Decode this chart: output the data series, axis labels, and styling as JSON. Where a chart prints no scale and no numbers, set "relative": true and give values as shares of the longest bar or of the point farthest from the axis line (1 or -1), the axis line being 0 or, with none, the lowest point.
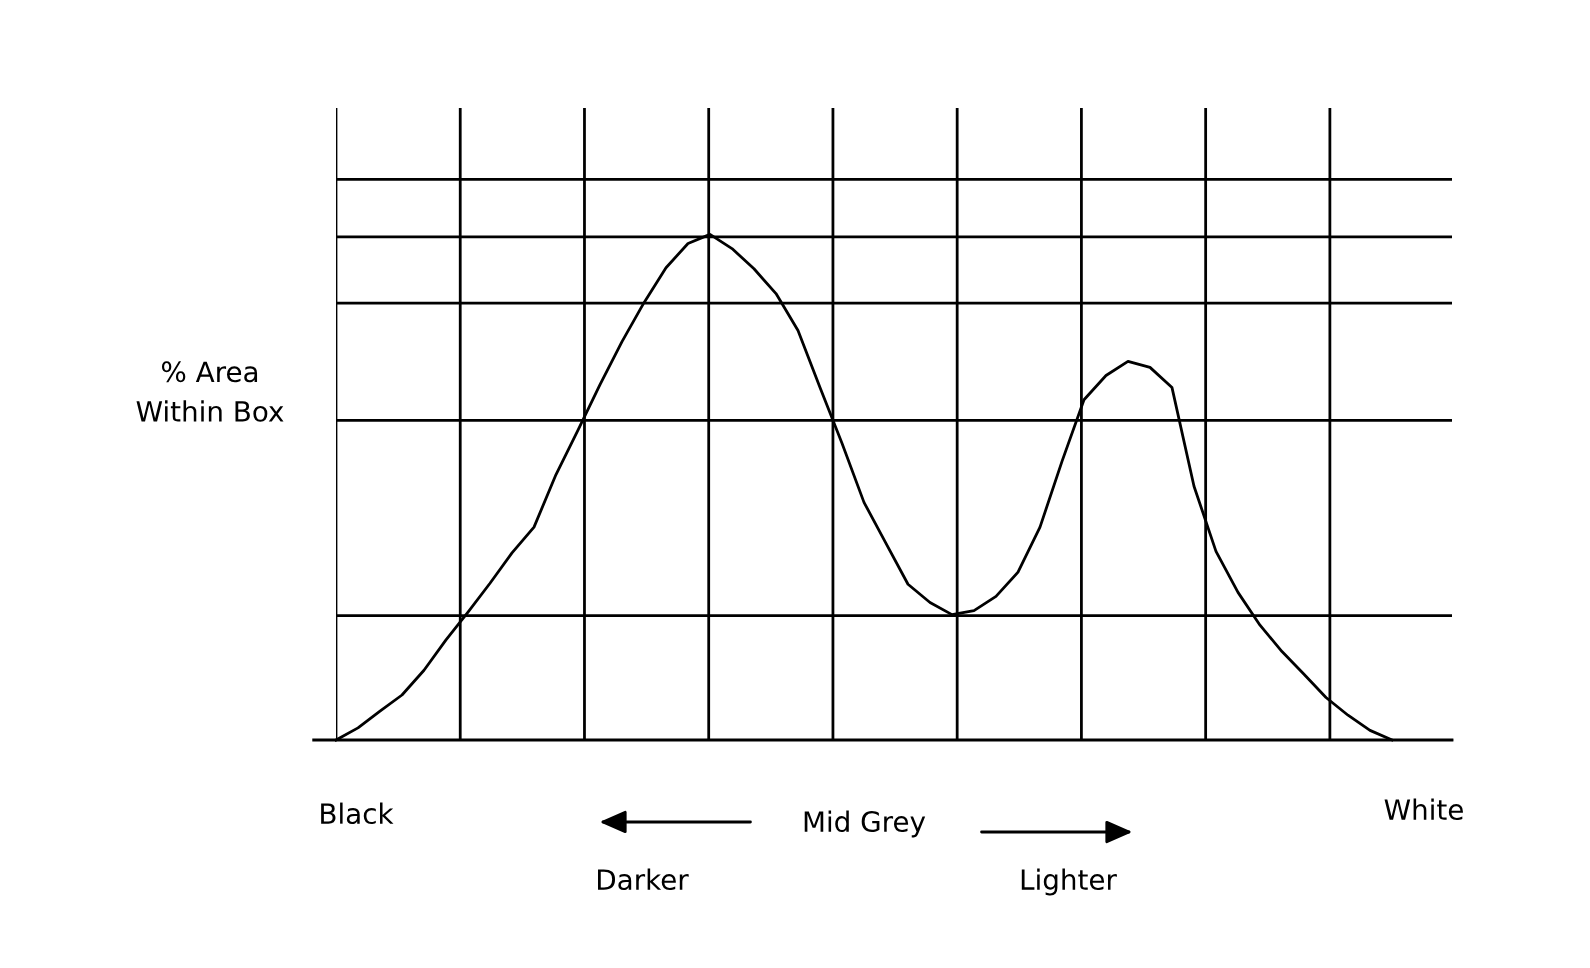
{
  "chart_data": {
    "type": "line",
    "relative": true,
    "ylabel": "% Area\nWithin Box",
    "grid": true,
    "marker": "none",
    "line_style": "solid",
    "categories": [
      null,
      null,
      null,
      null,
      null,
      null,
      null,
      null,
      null,
      null,
      null,
      null,
      null,
      null,
      null,
      null,
      null,
      null,
      null,
      null,
      null,
      null,
      null,
      null,
      null,
      null,
      null,
      null,
      null,
      null,
      null,
      null,
      null,
      null,
      null,
      null,
      null,
      null,
      null,
      null,
      null,
      null,
      null,
      null,
      null,
      null,
      null,
      null,
      null
    ],
    "series": [
      {
        "color": "#000000",
        "values": [
          0,
          0.024,
          0.057,
          0.089,
          0.138,
          0.198,
          0.253,
          0.31,
          0.37,
          0.421,
          0.525,
          0.613,
          0.703,
          0.788,
          0.865,
          0.934,
          0.982,
          1,
          0.972,
          0.932,
          0.883,
          0.81,
          0.697,
          0.587,
          0.47,
          0.389,
          0.308,
          0.272,
          0.248,
          0.256,
          0.284,
          0.332,
          0.421,
          0.551,
          0.673,
          0.721,
          0.749,
          0.737,
          0.697,
          0.502,
          0.373,
          0.292,
          0.227,
          0.175,
          0.13,
          0.084,
          0.049,
          0.019,
          0
        ]
      }
    ],
    "annotations": [
      "Black",
      "Mid Grey",
      "White",
      "Darker",
      "Lighter"
    ]
  }
}
